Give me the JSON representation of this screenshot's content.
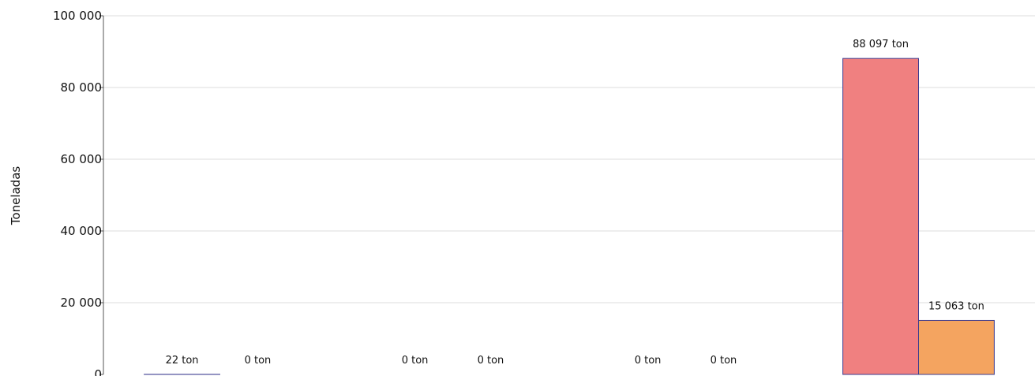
{
  "chart_data": {
    "type": "bar",
    "ylabel": "Toneladas",
    "ylim": [
      0,
      100000
    ],
    "yticks": [
      {
        "value": 0,
        "label": "0"
      },
      {
        "value": 20000,
        "label": "20 000"
      },
      {
        "value": 40000,
        "label": "40 000"
      },
      {
        "value": 60000,
        "label": "60 000"
      },
      {
        "value": 80000,
        "label": "80 000"
      },
      {
        "value": 100000,
        "label": "100 000"
      }
    ],
    "grid": true,
    "groups": 4,
    "series": [
      {
        "color": "#f08080",
        "values": [
          22,
          0,
          0,
          88097
        ],
        "labels": [
          "22 ton",
          "0 ton",
          "0 ton",
          "88 097 ton"
        ]
      },
      {
        "color": "#f4a460",
        "values": [
          0,
          0,
          0,
          15063
        ],
        "labels": [
          "0 ton",
          "0 ton",
          "0 ton",
          "15 063 ton"
        ]
      }
    ],
    "bar_edge_color": "#3b3b8f"
  }
}
